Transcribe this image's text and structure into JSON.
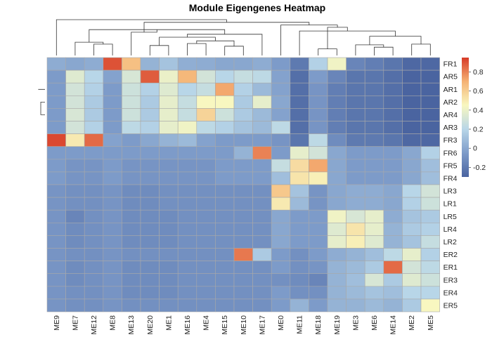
{
  "chart_data": {
    "type": "heatmap",
    "title": "Module Eigengenes Heatmap",
    "columns": [
      "ME9",
      "ME7",
      "ME12",
      "ME8",
      "ME13",
      "ME20",
      "ME1",
      "ME16",
      "ME4",
      "ME15",
      "ME10",
      "ME17",
      "ME0",
      "ME11",
      "ME18",
      "ME19",
      "ME3",
      "ME6",
      "ME14",
      "ME2",
      "ME5"
    ],
    "rows": [
      "FR1",
      "AR5",
      "AR1",
      "AR2",
      "AR4",
      "AR3",
      "FR3",
      "FR6",
      "FR5",
      "FR4",
      "LR3",
      "LR1",
      "LR5",
      "LR4",
      "LR2",
      "ER2",
      "ER1",
      "ER3",
      "ER4",
      "ER5"
    ],
    "values": [
      [
        0.02,
        0.0,
        0.02,
        0.9,
        0.65,
        0.05,
        0.12,
        0.03,
        0.02,
        0.0,
        0.0,
        0.02,
        -0.05,
        -0.2,
        0.18,
        0.42,
        -0.15,
        -0.18,
        -0.22,
        -0.28,
        -0.28
      ],
      [
        -0.05,
        0.35,
        0.2,
        -0.02,
        0.32,
        0.88,
        0.4,
        0.68,
        0.3,
        0.2,
        0.25,
        0.22,
        -0.02,
        -0.25,
        -0.05,
        -0.15,
        -0.22,
        -0.22,
        -0.25,
        -0.3,
        -0.3
      ],
      [
        -0.05,
        0.3,
        0.18,
        -0.05,
        0.28,
        0.18,
        0.35,
        0.2,
        0.25,
        0.72,
        0.18,
        0.08,
        -0.02,
        -0.25,
        -0.08,
        -0.18,
        -0.22,
        -0.22,
        -0.25,
        -0.3,
        -0.3
      ],
      [
        -0.05,
        0.3,
        0.15,
        -0.05,
        0.28,
        0.15,
        0.38,
        0.25,
        0.45,
        0.45,
        0.15,
        0.38,
        0.0,
        -0.25,
        -0.08,
        -0.18,
        -0.22,
        -0.22,
        -0.25,
        -0.3,
        -0.3
      ],
      [
        -0.05,
        0.32,
        0.15,
        -0.05,
        0.28,
        0.15,
        0.38,
        0.25,
        0.58,
        0.28,
        0.15,
        0.08,
        -0.02,
        -0.25,
        -0.08,
        -0.18,
        -0.22,
        -0.22,
        -0.25,
        -0.3,
        -0.3
      ],
      [
        -0.05,
        0.3,
        0.18,
        -0.05,
        0.22,
        0.18,
        0.38,
        0.42,
        0.22,
        0.18,
        0.12,
        0.08,
        0.22,
        -0.25,
        -0.08,
        -0.18,
        -0.22,
        -0.22,
        -0.25,
        -0.3,
        -0.3
      ],
      [
        0.92,
        0.5,
        0.85,
        -0.02,
        -0.05,
        0.0,
        0.05,
        0.08,
        -0.02,
        -0.05,
        -0.05,
        -0.05,
        -0.08,
        -0.22,
        0.22,
        -0.12,
        -0.2,
        -0.2,
        -0.22,
        -0.28,
        -0.28
      ],
      [
        -0.05,
        -0.05,
        -0.05,
        -0.05,
        -0.05,
        -0.05,
        -0.05,
        -0.05,
        -0.05,
        -0.05,
        0.05,
        0.8,
        -0.05,
        0.38,
        0.3,
        0.0,
        -0.05,
        -0.05,
        -0.05,
        0.0,
        0.18
      ],
      [
        -0.05,
        -0.08,
        -0.08,
        -0.05,
        -0.08,
        -0.08,
        -0.08,
        -0.08,
        -0.08,
        -0.05,
        -0.05,
        -0.05,
        0.25,
        0.55,
        0.72,
        0.0,
        -0.05,
        -0.05,
        -0.05,
        0.0,
        0.1
      ],
      [
        -0.05,
        -0.08,
        -0.08,
        -0.05,
        -0.08,
        -0.08,
        -0.08,
        -0.08,
        -0.08,
        -0.05,
        -0.05,
        -0.05,
        0.1,
        0.52,
        0.48,
        0.0,
        -0.05,
        -0.05,
        -0.05,
        0.0,
        0.1
      ],
      [
        -0.08,
        -0.1,
        -0.1,
        -0.08,
        -0.12,
        -0.12,
        -0.1,
        -0.1,
        -0.1,
        -0.1,
        -0.1,
        -0.1,
        0.62,
        0.12,
        -0.08,
        0.0,
        0.02,
        0.02,
        0.0,
        0.2,
        0.3
      ],
      [
        -0.08,
        -0.1,
        -0.1,
        -0.08,
        -0.12,
        -0.12,
        -0.1,
        -0.1,
        -0.1,
        -0.1,
        -0.1,
        -0.1,
        0.5,
        0.08,
        -0.08,
        0.0,
        0.02,
        0.02,
        0.0,
        0.18,
        0.28
      ],
      [
        -0.08,
        -0.15,
        -0.1,
        -0.08,
        -0.12,
        -0.12,
        -0.12,
        -0.1,
        -0.1,
        -0.1,
        -0.1,
        -0.1,
        0.0,
        -0.05,
        -0.05,
        0.42,
        0.32,
        0.38,
        0.02,
        0.12,
        0.15
      ],
      [
        -0.08,
        -0.12,
        -0.1,
        -0.08,
        -0.12,
        -0.12,
        -0.12,
        -0.1,
        -0.1,
        -0.1,
        -0.1,
        -0.1,
        0.0,
        -0.05,
        -0.05,
        0.35,
        0.52,
        0.38,
        0.05,
        0.15,
        0.18
      ],
      [
        -0.08,
        -0.12,
        -0.1,
        -0.08,
        -0.12,
        -0.12,
        -0.12,
        -0.1,
        -0.1,
        -0.1,
        -0.1,
        -0.1,
        0.0,
        -0.05,
        -0.05,
        0.38,
        0.48,
        0.35,
        0.05,
        0.12,
        0.25
      ],
      [
        -0.08,
        -0.1,
        -0.1,
        -0.08,
        -0.1,
        -0.1,
        -0.1,
        -0.1,
        -0.1,
        -0.1,
        0.82,
        0.15,
        -0.05,
        -0.1,
        -0.05,
        0.02,
        0.05,
        0.1,
        0.22,
        0.38,
        0.18
      ],
      [
        -0.08,
        -0.12,
        -0.1,
        -0.08,
        -0.12,
        -0.12,
        -0.12,
        -0.1,
        -0.1,
        -0.1,
        -0.1,
        -0.1,
        -0.05,
        -0.1,
        -0.08,
        0.05,
        0.08,
        0.15,
        0.85,
        0.3,
        0.22
      ],
      [
        -0.08,
        -0.12,
        -0.1,
        -0.08,
        -0.12,
        -0.12,
        -0.12,
        -0.1,
        -0.1,
        -0.1,
        -0.1,
        -0.1,
        -0.1,
        -0.12,
        -0.15,
        0.05,
        0.1,
        0.32,
        0.15,
        0.35,
        0.28
      ],
      [
        -0.08,
        -0.1,
        -0.1,
        -0.08,
        -0.12,
        -0.12,
        -0.12,
        -0.1,
        -0.1,
        -0.1,
        -0.1,
        -0.1,
        -0.05,
        -0.1,
        -0.1,
        0.05,
        0.08,
        0.12,
        0.1,
        0.2,
        0.2
      ],
      [
        -0.08,
        -0.1,
        -0.1,
        -0.08,
        -0.1,
        -0.1,
        -0.1,
        -0.1,
        -0.1,
        -0.1,
        -0.1,
        -0.1,
        -0.05,
        0.05,
        -0.05,
        0.05,
        0.05,
        0.08,
        0.05,
        0.15,
        0.45
      ]
    ],
    "colorbar": {
      "ticks": [
        -0.2,
        0,
        0.2,
        0.4,
        0.6,
        0.8
      ],
      "range": [
        -0.3,
        0.95
      ],
      "colors": [
        "#4a64a0",
        "#7d9bc9",
        "#b8d6e8",
        "#f8f7c0",
        "#f5b274",
        "#d73a27"
      ]
    },
    "column_dendrogram": {
      "merges": [
        [
          14,
          15,
          0.2
        ],
        [
          17,
          18,
          0.25
        ],
        [
          16,
          22,
          0.32
        ],
        [
          2,
          3,
          0.34
        ],
        [
          1,
          24,
          0.4
        ],
        [
          5,
          6,
          0.3
        ],
        [
          7,
          8,
          0.36
        ],
        [
          9,
          10,
          0.28
        ],
        [
          27,
          28,
          0.44
        ],
        [
          26,
          29,
          0.55
        ],
        [
          11,
          30,
          0.64
        ],
        [
          25,
          31,
          0.78
        ],
        [
          4,
          32,
          0.7
        ],
        [
          19,
          20,
          0.34
        ],
        [
          23,
          34,
          0.58
        ],
        [
          13,
          35,
          0.74
        ],
        [
          21,
          36,
          0.85
        ],
        [
          12,
          37,
          0.92
        ],
        [
          33,
          38,
          1.0
        ],
        [
          0,
          39,
          1.08
        ]
      ]
    },
    "row_dendrogram": {
      "merges": [
        [
          3,
          4,
          0.1
        ],
        [
          2,
          21,
          0.16
        ],
        [
          5,
          22,
          0.22
        ],
        [
          1,
          23,
          0.35
        ],
        [
          0,
          24,
          0.62
        ],
        [
          6,
          25,
          0.8
        ],
        [
          8,
          9,
          0.12
        ],
        [
          7,
          27,
          0.32
        ],
        [
          10,
          11,
          0.14
        ],
        [
          13,
          14,
          0.1
        ],
        [
          12,
          30,
          0.2
        ],
        [
          29,
          31,
          0.48
        ],
        [
          28,
          32,
          0.66
        ],
        [
          17,
          18,
          0.16
        ],
        [
          19,
          34,
          0.24
        ],
        [
          16,
          35,
          0.36
        ],
        [
          15,
          36,
          0.5
        ],
        [
          33,
          37,
          0.82
        ],
        [
          26,
          38,
          1.0
        ]
      ]
    }
  }
}
